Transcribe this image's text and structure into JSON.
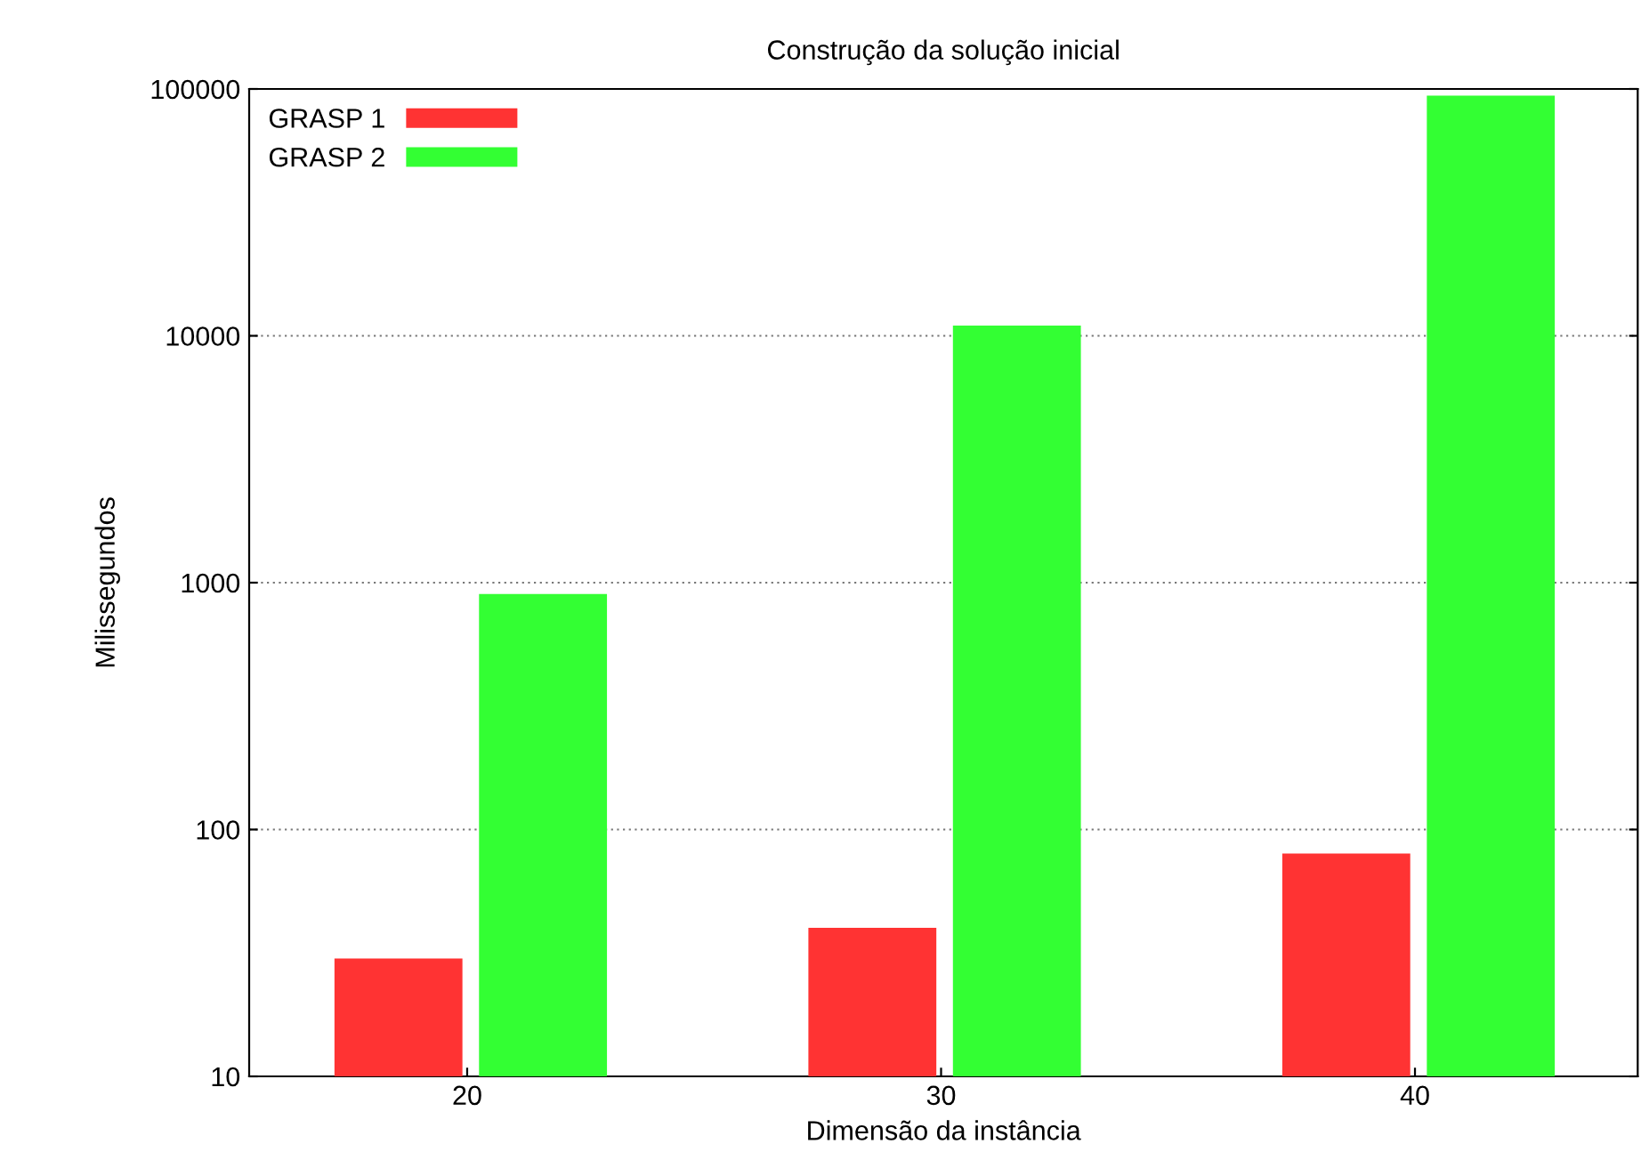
{
  "chart_data": {
    "type": "bar",
    "title": "Construção da solução inicial",
    "xlabel": "Dimensão da instância",
    "ylabel": "Milissegundos",
    "categories": [
      "20",
      "30",
      "40"
    ],
    "series": [
      {
        "name": "GRASP 1",
        "color": "#ff3333",
        "values": [
          30,
          40,
          80
        ]
      },
      {
        "name": "GRASP 2",
        "color": "#33ff33",
        "values": [
          900,
          11000,
          94000
        ]
      }
    ],
    "log": "y",
    "ylim": [
      10,
      100000
    ],
    "yticks": [
      10,
      100,
      1000,
      10000,
      100000
    ],
    "grid": "y",
    "legend": "top left"
  }
}
